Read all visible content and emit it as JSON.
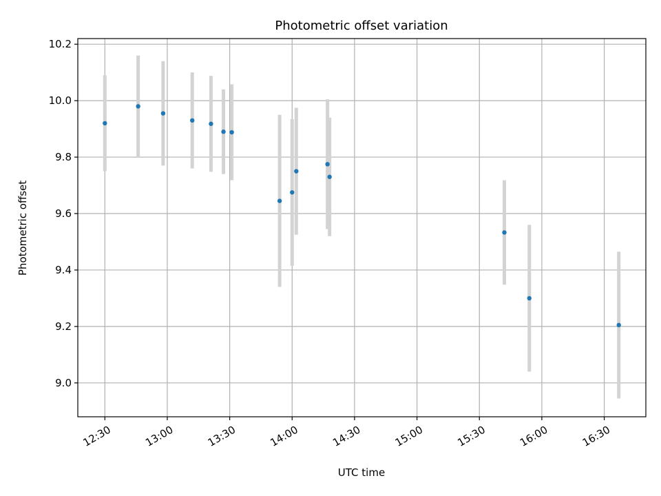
{
  "chart_data": {
    "type": "scatter",
    "title": "Photometric offset variation",
    "xlabel": "UTC time",
    "ylabel": "Photometric offset",
    "grid": true,
    "xlim": [
      "12:17",
      "16:50"
    ],
    "ylim": [
      8.88,
      10.22
    ],
    "x_ticks": [
      "12:30",
      "13:00",
      "13:30",
      "14:00",
      "14:30",
      "15:00",
      "15:30",
      "16:00",
      "16:30"
    ],
    "y_ticks": [
      "9.0",
      "9.2",
      "9.4",
      "9.6",
      "9.8",
      "10.0",
      "10.2"
    ],
    "colors": {
      "point": "#1f77b4",
      "errorbar": "#d3d3d3",
      "grid": "#b0b0b0"
    },
    "points": [
      {
        "x": "12:30",
        "y": 9.92,
        "err": 0.17
      },
      {
        "x": "12:46",
        "y": 9.98,
        "err": 0.18
      },
      {
        "x": "12:58",
        "y": 9.955,
        "err": 0.185
      },
      {
        "x": "13:12",
        "y": 9.93,
        "err": 0.17
      },
      {
        "x": "13:21",
        "y": 9.918,
        "err": 0.17
      },
      {
        "x": "13:27",
        "y": 9.89,
        "err": 0.15
      },
      {
        "x": "13:31",
        "y": 9.888,
        "err": 0.17
      },
      {
        "x": "13:54",
        "y": 9.645,
        "err": 0.305
      },
      {
        "x": "14:00",
        "y": 9.675,
        "err": 0.26
      },
      {
        "x": "14:02",
        "y": 9.75,
        "err": 0.225
      },
      {
        "x": "14:17",
        "y": 9.775,
        "err": 0.23
      },
      {
        "x": "14:18",
        "y": 9.73,
        "err": 0.21
      },
      {
        "x": "15:42",
        "y": 9.533,
        "err": 0.185
      },
      {
        "x": "15:54",
        "y": 9.3,
        "err": 0.26
      },
      {
        "x": "16:37",
        "y": 9.205,
        "err": 0.26
      }
    ]
  }
}
